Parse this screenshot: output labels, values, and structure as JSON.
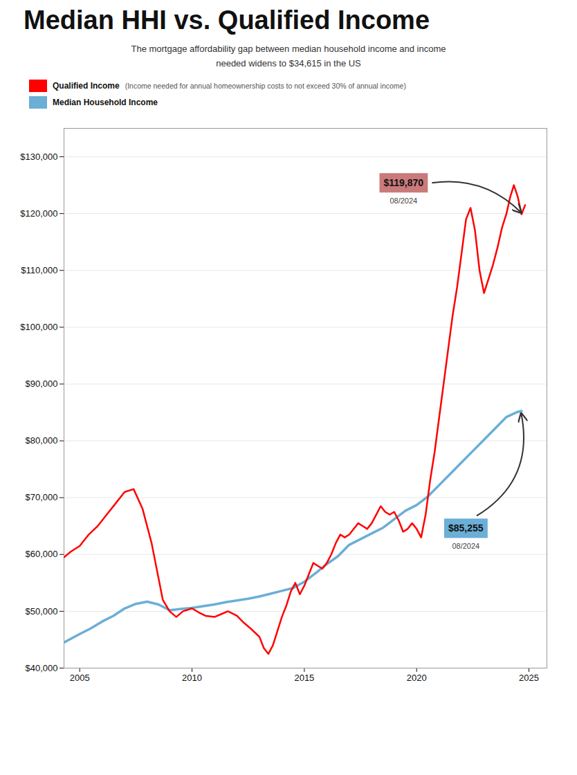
{
  "chart_data": {
    "type": "line",
    "title": "Median HHI vs. Qualified Income",
    "subtitle": "The mortgage affordability gap between median household income and income\nneeded widens to $34,615 in the US",
    "legend": "top-left",
    "grid": true,
    "xlim": [
      2004.3,
      2025.8
    ],
    "xticks": [
      2005,
      2010,
      2015,
      2020,
      2025
    ],
    "ylim": [
      40000,
      135000
    ],
    "yticks": [
      {
        "value": 40000,
        "label": "$40,000"
      },
      {
        "value": 50000,
        "label": "$50,000"
      },
      {
        "value": 60000,
        "label": "$60,000"
      },
      {
        "value": 70000,
        "label": "$70,000"
      },
      {
        "value": 80000,
        "label": "$80,000"
      },
      {
        "value": 90000,
        "label": "$90,000"
      },
      {
        "value": 100000,
        "label": "$100,000"
      },
      {
        "value": 110000,
        "label": "$110,000"
      },
      {
        "value": 120000,
        "label": "$120,000"
      },
      {
        "value": 130000,
        "label": "$130,000"
      }
    ],
    "series": [
      {
        "name": "Qualified Income",
        "description": " (Income needed for annual homeownership costs to not exceed 30% of annual income)",
        "color": "#FF0000",
        "x": [
          2004.3,
          2004.6,
          2005.0,
          2005.4,
          2005.8,
          2006.2,
          2006.6,
          2007.0,
          2007.4,
          2007.8,
          2008.2,
          2008.5,
          2008.7,
          2009.0,
          2009.3,
          2009.6,
          2010.0,
          2010.3,
          2010.6,
          2011.0,
          2011.3,
          2011.6,
          2012.0,
          2012.3,
          2012.6,
          2013.0,
          2013.2,
          2013.4,
          2013.6,
          2013.8,
          2014.0,
          2014.2,
          2014.4,
          2014.6,
          2014.8,
          2015.0,
          2015.2,
          2015.4,
          2015.6,
          2015.8,
          2016.0,
          2016.2,
          2016.4,
          2016.6,
          2016.8,
          2017.0,
          2017.2,
          2017.4,
          2017.6,
          2017.8,
          2018.0,
          2018.2,
          2018.4,
          2018.6,
          2018.8,
          2019.0,
          2019.2,
          2019.4,
          2019.6,
          2019.8,
          2020.0,
          2020.2,
          2020.4,
          2020.6,
          2020.8,
          2021.0,
          2021.2,
          2021.4,
          2021.6,
          2021.8,
          2022.0,
          2022.2,
          2022.4,
          2022.6,
          2022.8,
          2023.0,
          2023.2,
          2023.4,
          2023.6,
          2023.8,
          2024.0,
          2024.17,
          2024.33,
          2024.5,
          2024.67,
          2024.83
        ],
        "values": [
          59500,
          60500,
          61500,
          63500,
          65000,
          67000,
          69000,
          71000,
          71500,
          68000,
          62000,
          56000,
          52000,
          50000,
          49000,
          50000,
          50500,
          49800,
          49200,
          49000,
          49500,
          50000,
          49200,
          48000,
          47000,
          45500,
          43500,
          42500,
          44000,
          46500,
          49000,
          51000,
          53500,
          55000,
          53000,
          54500,
          56500,
          58500,
          58000,
          57500,
          58500,
          60000,
          62000,
          63500,
          63000,
          63500,
          64500,
          65500,
          65000,
          64500,
          65500,
          67000,
          68500,
          67500,
          67000,
          67500,
          66000,
          64000,
          64500,
          65500,
          64500,
          63000,
          67000,
          73000,
          78000,
          84000,
          90000,
          96000,
          102000,
          107000,
          113000,
          119000,
          121000,
          117000,
          110000,
          106000,
          108500,
          111000,
          114000,
          117500,
          120000,
          123000,
          125000,
          123000,
          119870,
          121500
        ]
      },
      {
        "name": "Median Household Income",
        "color": "#6BAED6",
        "x": [
          2004.3,
          2005.0,
          2005.5,
          2006.0,
          2006.5,
          2007.0,
          2007.5,
          2008.0,
          2008.5,
          2009.0,
          2009.5,
          2010.0,
          2010.5,
          2011.0,
          2011.5,
          2012.0,
          2012.5,
          2013.0,
          2013.5,
          2014.0,
          2014.5,
          2015.0,
          2015.5,
          2016.0,
          2016.5,
          2017.0,
          2017.5,
          2018.0,
          2018.5,
          2019.0,
          2019.5,
          2020.0,
          2020.5,
          2021.0,
          2021.5,
          2022.0,
          2022.5,
          2023.0,
          2023.5,
          2024.0,
          2024.5,
          2024.67
        ],
        "values": [
          44500,
          46000,
          47000,
          48200,
          49200,
          50500,
          51300,
          51700,
          51200,
          50200,
          50400,
          50600,
          50900,
          51200,
          51600,
          51900,
          52200,
          52600,
          53100,
          53600,
          54100,
          55200,
          56700,
          58300,
          59700,
          61700,
          62700,
          63700,
          64700,
          66200,
          67700,
          68700,
          70200,
          72200,
          74200,
          76200,
          78200,
          80200,
          82200,
          84200,
          85100,
          85255
        ]
      }
    ],
    "annotations": [
      {
        "text": "$119,870",
        "note": "08/2024",
        "x": 2024.67,
        "y": 119870,
        "color": "#C97A7A"
      },
      {
        "text": "$85,255",
        "note": "08/2024",
        "x": 2024.67,
        "y": 85255,
        "color": "#6BAED6"
      }
    ]
  }
}
